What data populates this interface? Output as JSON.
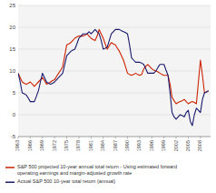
{
  "chart_data": {
    "type": "line",
    "x": [
      1963,
      1963.5,
      1964,
      1964.5,
      1965,
      1965.5,
      1966,
      1966.5,
      1967,
      1967.5,
      1968,
      1968.5,
      1969,
      1969.5,
      1970,
      1970.5,
      1971,
      1971.5,
      1972,
      1972.5,
      1973,
      1973.5,
      1974,
      1974.5,
      1975,
      1975.5,
      1976,
      1976.5,
      1977,
      1977.5,
      1978,
      1978.5,
      1979,
      1979.5,
      1980,
      1980.5,
      1981,
      1981.5,
      1982,
      1982.5,
      1983,
      1983.5,
      1984,
      1984.5,
      1985,
      1985.5,
      1986,
      1986.5,
      1987,
      1987.5,
      1988,
      1988.5,
      1989,
      1989.5,
      1990,
      1990.5,
      1991,
      1991.5,
      1992,
      1992.5,
      1993,
      1993.5,
      1994,
      1994.5,
      1995,
      1995.5,
      1996,
      1996.5,
      1997,
      1997.5,
      1998,
      1998.5,
      1999,
      1999.5,
      2000,
      2000.5,
      2001,
      2001.5,
      2002,
      2002.5,
      2003,
      2003.5,
      2004,
      2004.5,
      2005,
      2005.5,
      2006,
      2006.5,
      2007,
      2007.5,
      2008,
      2008.5,
      2009,
      2009.5,
      2010
    ],
    "series": [
      {
        "name": "S&P 500 projected 10-year annual total return - Using estimated forward\noperating earnings and margin-adjusted growth rate",
        "color": "#cc2200",
        "values": [
          9.5,
          8.5,
          7.5,
          7.2,
          7.0,
          7.2,
          7.5,
          7.0,
          6.5,
          7.0,
          7.5,
          8.0,
          8.5,
          7.8,
          7.0,
          7.2,
          7.5,
          7.8,
          8.0,
          8.8,
          9.5,
          10.2,
          11.0,
          13.5,
          16.0,
          16.2,
          16.5,
          17.0,
          17.5,
          17.8,
          18.0,
          18.0,
          18.0,
          18.2,
          18.5,
          18.0,
          17.5,
          17.2,
          17.0,
          18.0,
          19.5,
          18.5,
          17.5,
          16.2,
          15.0,
          15.8,
          16.5,
          16.2,
          16.0,
          15.2,
          14.5,
          13.5,
          12.5,
          11.0,
          9.5,
          9.2,
          9.0,
          9.2,
          9.5,
          9.2,
          9.0,
          9.2,
          10.5,
          11.0,
          11.5,
          11.0,
          10.5,
          10.2,
          10.0,
          9.8,
          9.5,
          9.2,
          9.0,
          9.0,
          9.0,
          7.0,
          4.0,
          3.2,
          2.5,
          2.8,
          3.0,
          3.2,
          3.5,
          3.0,
          2.5,
          2.8,
          3.0,
          2.8,
          2.5,
          7.5,
          12.5,
          9.0,
          5.0,
          5.2,
          5.5
        ]
      },
      {
        "name": "Actual S&P 500 10-year total return (annual)",
        "color": "#1a1a6e",
        "values": [
          9.5,
          7.5,
          5.0,
          4.8,
          4.5,
          3.8,
          3.0,
          3.0,
          3.0,
          4.2,
          5.5,
          7.5,
          9.5,
          8.5,
          7.5,
          7.2,
          7.0,
          7.2,
          7.5,
          8.0,
          8.5,
          9.0,
          9.5,
          11.5,
          13.5,
          14.0,
          14.5,
          14.8,
          15.0,
          16.2,
          17.5,
          18.0,
          18.5,
          18.5,
          18.5,
          19.0,
          18.5,
          19.0,
          19.5,
          19.0,
          18.5,
          17.0,
          15.0,
          15.2,
          15.5,
          17.0,
          18.5,
          19.0,
          19.5,
          19.5,
          19.5,
          19.2,
          19.0,
          18.8,
          18.5,
          16.0,
          13.0,
          12.5,
          12.0,
          12.0,
          12.0,
          11.8,
          11.5,
          10.5,
          9.5,
          9.5,
          9.5,
          9.5,
          10.0,
          10.8,
          11.5,
          11.5,
          11.5,
          10.2,
          9.0,
          5.0,
          0.5,
          -0.5,
          -1.0,
          -0.5,
          0.0,
          -0.2,
          -0.5,
          0.5,
          1.0,
          -1.5,
          -2.5,
          0.0,
          1.5,
          1.0,
          0.5,
          3.5,
          5.0,
          5.2,
          5.5
        ]
      }
    ],
    "xlim": [
      1963,
      2010.5
    ],
    "xticks": [
      1963,
      1966,
      1969,
      1972,
      1975,
      1978,
      1981,
      1984,
      1987,
      1990,
      1993,
      1996,
      1999,
      2002,
      2005,
      2008
    ],
    "ylim": [
      -5,
      25
    ],
    "yticks": [
      -5,
      0,
      5,
      10,
      15,
      20,
      25
    ],
    "grid": true,
    "legend": "bottom"
  }
}
